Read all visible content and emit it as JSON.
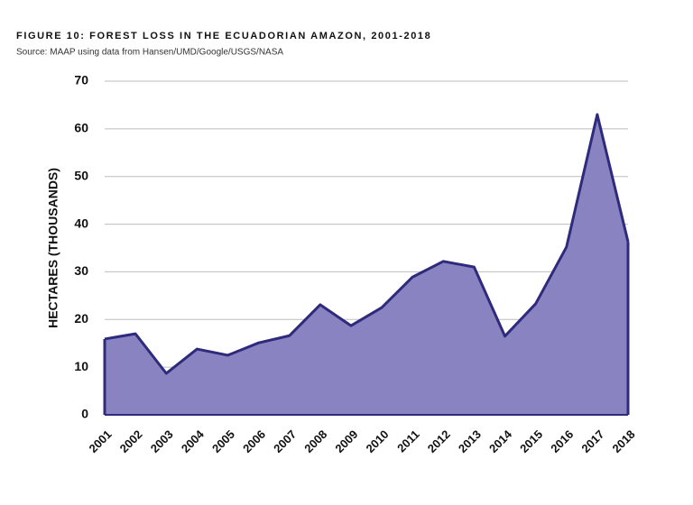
{
  "chart_data": {
    "type": "area",
    "title": "FIGURE 10: FOREST LOSS IN THE ECUADORIAN AMAZON, 2001-2018",
    "subtitle": "Source: MAAP using data from Hansen/UMD/Google/USGS/NASA",
    "y_label": "HECTARES (THOUSANDS)",
    "categories": [
      "2001",
      "2002",
      "2003",
      "2004",
      "2005",
      "2006",
      "2007",
      "2008",
      "2009",
      "2010",
      "2011",
      "2012",
      "2013",
      "2014",
      "2015",
      "2016",
      "2017",
      "2018"
    ],
    "values": [
      15.9,
      17.0,
      8.7,
      13.8,
      12.5,
      15.1,
      16.6,
      23.1,
      18.7,
      22.5,
      28.9,
      32.2,
      31.0,
      16.5,
      23.3,
      35.2,
      63.0,
      36.3
    ],
    "color": "#8a83c1",
    "line_color": "#2f2b7c",
    "ylim": [
      0,
      70
    ],
    "yticks": [
      0,
      10,
      20,
      30,
      40,
      50,
      60,
      70
    ],
    "grid": true
  }
}
